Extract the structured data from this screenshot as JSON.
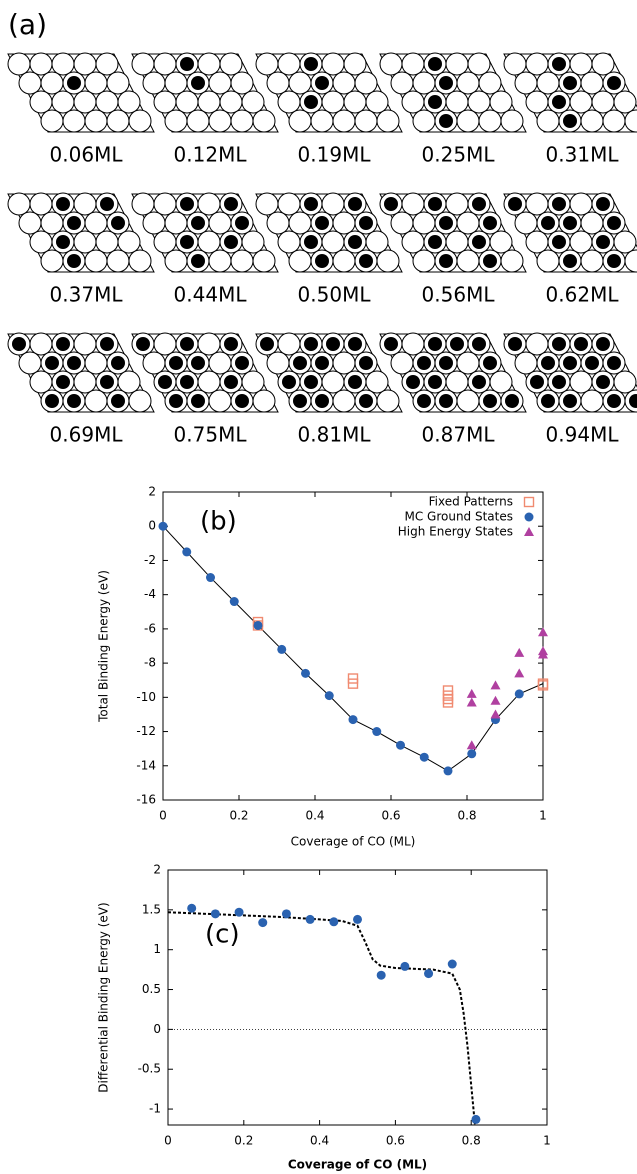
{
  "panel_a": {
    "label": "(a)",
    "labels": [
      "0.06ML",
      "0.12ML",
      "0.19ML",
      "0.25ML",
      "0.31ML",
      "0.37ML",
      "0.44ML",
      "0.50ML",
      "0.56ML",
      "0.62ML",
      "0.69ML",
      "0.75ML",
      "0.81ML",
      "0.87ML",
      "0.94ML"
    ]
  },
  "chart_data": [
    {
      "type": "scatter",
      "annotation": "(b)",
      "xlabel": "Coverage of CO (ML)",
      "ylabel": "Total Binding Energy (eV)",
      "xlim": [
        0,
        1
      ],
      "ylim": [
        -16,
        2
      ],
      "xticks": [
        0,
        0.2,
        0.4,
        0.6,
        0.8,
        1
      ],
      "yticks": [
        -16,
        -14,
        -12,
        -10,
        -8,
        -6,
        -4,
        -2,
        0,
        2
      ],
      "legend": "upper right",
      "series": [
        {
          "style": "solid",
          "color": "#000000",
          "x": [
            0,
            0.0625,
            0.125,
            0.1875,
            0.25,
            0.3125,
            0.375,
            0.4375,
            0.5,
            0.5625,
            0.625,
            0.6875,
            0.75,
            0.8125,
            0.875,
            0.9375,
            1
          ],
          "values": [
            0,
            -1.5,
            -3.0,
            -4.4,
            -5.8,
            -7.2,
            -8.6,
            -9.9,
            -11.3,
            -12.0,
            -12.8,
            -13.5,
            -14.3,
            -13.3,
            -11.3,
            -9.8,
            -9.2
          ]
        },
        {
          "name": "Fixed Patterns",
          "marker": "open-square",
          "color": "#f08a70",
          "x": [
            0.25,
            0.25,
            0.5,
            0.5,
            0.75,
            0.75,
            0.75,
            0.75,
            1,
            1
          ],
          "values": [
            -5.6,
            -5.8,
            -8.9,
            -9.2,
            -9.6,
            -9.9,
            -10.1,
            -10.3,
            -9.2,
            -9.3
          ]
        },
        {
          "name": "MC Ground States",
          "marker": "circle",
          "color": "#2a62b0",
          "x": [
            0,
            0.0625,
            0.125,
            0.1875,
            0.25,
            0.3125,
            0.375,
            0.4375,
            0.5,
            0.5625,
            0.625,
            0.6875,
            0.75,
            0.8125,
            0.875,
            0.9375
          ],
          "values": [
            0,
            -1.5,
            -3.0,
            -4.4,
            -5.8,
            -7.2,
            -8.6,
            -9.9,
            -11.3,
            -12.0,
            -12.8,
            -13.5,
            -14.3,
            -13.3,
            -11.3,
            -9.8
          ]
        },
        {
          "name": "High Energy States",
          "marker": "triangle",
          "color": "#b040a0",
          "x": [
            0.8125,
            0.8125,
            0.8125,
            0.875,
            0.875,
            0.875,
            0.9375,
            0.9375,
            1,
            1,
            1
          ],
          "values": [
            -9.8,
            -10.3,
            -12.8,
            -9.3,
            -10.2,
            -11.0,
            -7.4,
            -8.6,
            -6.2,
            -7.3,
            -7.5
          ]
        }
      ]
    },
    {
      "type": "scatter",
      "annotation": "(c)",
      "xlabel": "Coverage of CO (ML)",
      "ylabel": "Differential Binding Energy (eV)",
      "xlim": [
        0,
        1
      ],
      "ylim": [
        -1.2,
        2
      ],
      "xticks": [
        0,
        0.2,
        0.4,
        0.6,
        0.8,
        1
      ],
      "yticks": [
        -1,
        -0.5,
        0,
        0.5,
        1,
        1.5,
        2
      ],
      "reference_lines": [
        0
      ],
      "series": [
        {
          "style": "dashed",
          "color": "#000000",
          "x": [
            0,
            0.1,
            0.2,
            0.3,
            0.4,
            0.46,
            0.5,
            0.52,
            0.54,
            0.56,
            0.6,
            0.7,
            0.75,
            0.77,
            0.78,
            0.79,
            0.8,
            0.81
          ],
          "values": [
            1.47,
            1.45,
            1.43,
            1.41,
            1.38,
            1.36,
            1.3,
            1.1,
            0.88,
            0.8,
            0.77,
            0.75,
            0.7,
            0.5,
            0.2,
            -0.2,
            -0.7,
            -1.2
          ]
        },
        {
          "marker": "circle",
          "color": "#2a62b0",
          "x": [
            0.0625,
            0.125,
            0.1875,
            0.25,
            0.3125,
            0.375,
            0.4375,
            0.5,
            0.5625,
            0.625,
            0.6875,
            0.75,
            0.8125
          ],
          "values": [
            1.52,
            1.45,
            1.47,
            1.34,
            1.45,
            1.38,
            1.35,
            1.38,
            0.68,
            0.79,
            0.7,
            0.82,
            -1.13
          ]
        }
      ]
    }
  ]
}
